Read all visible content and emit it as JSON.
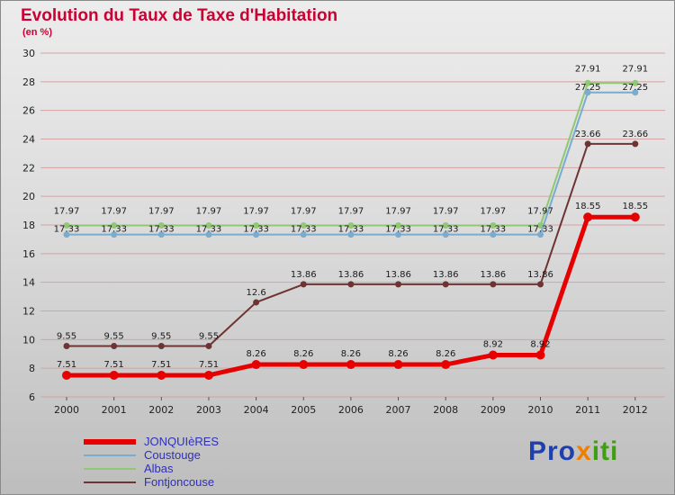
{
  "header": {
    "title": "Evolution du Taux de Taxe d'Habitation",
    "subtitle": "(en %)"
  },
  "chart_data": {
    "type": "line",
    "title": "Evolution du Taux de Taxe d'Habitation",
    "subtitle": "(en %)",
    "x": [
      2000,
      2001,
      2002,
      2003,
      2004,
      2005,
      2006,
      2007,
      2008,
      2009,
      2010,
      2011,
      2012
    ],
    "ylim": [
      6,
      30
    ],
    "ytick_step": 2,
    "grid": true,
    "grid_color": "#d4a3a3",
    "legend_position": "bottom-left",
    "series": [
      {
        "name": "JONQUIèRES",
        "color": "#e60000",
        "width": 5,
        "marker": 5,
        "label_dy": -9,
        "values": [
          7.51,
          7.51,
          7.51,
          7.51,
          8.26,
          8.26,
          8.26,
          8.26,
          8.26,
          8.92,
          8.92,
          18.55,
          18.55
        ]
      },
      {
        "name": "Coustouge",
        "color": "#7aaccf",
        "width": 2,
        "marker": 3.5,
        "label_dy": -3,
        "values": [
          17.33,
          17.33,
          17.33,
          17.33,
          17.33,
          17.33,
          17.33,
          17.33,
          17.33,
          17.33,
          17.33,
          27.25,
          27.25
        ]
      },
      {
        "name": "Albas",
        "color": "#8fc971",
        "width": 2,
        "marker": 3.5,
        "label_dy": -13,
        "values": [
          17.97,
          17.97,
          17.97,
          17.97,
          17.97,
          17.97,
          17.97,
          17.97,
          17.97,
          17.97,
          17.97,
          27.91,
          27.91
        ]
      },
      {
        "name": "Fontjoncouse",
        "color": "#6e3434",
        "width": 2,
        "marker": 3.5,
        "label_dy": -8,
        "values": [
          9.55,
          9.55,
          9.55,
          9.55,
          12.6,
          13.86,
          13.86,
          13.86,
          13.86,
          13.86,
          13.86,
          23.66,
          23.66
        ]
      }
    ]
  },
  "logo": {
    "parts": [
      {
        "text": "Pro",
        "color": "#1f3fae"
      },
      {
        "text": "x",
        "color": "#f07f00"
      },
      {
        "text": "iti",
        "color": "#3f9e12"
      }
    ]
  }
}
